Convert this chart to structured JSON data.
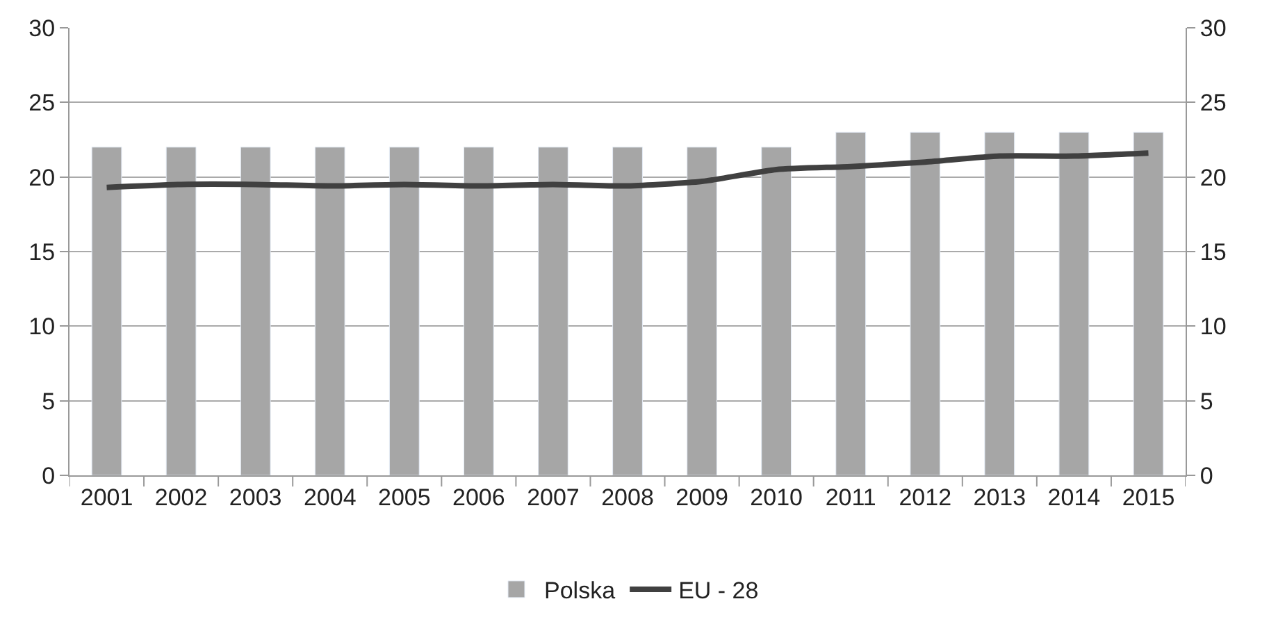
{
  "chart_data": {
    "type": "bar",
    "categories": [
      "2001",
      "2002",
      "2003",
      "2004",
      "2005",
      "2006",
      "2007",
      "2008",
      "2009",
      "2010",
      "2011",
      "2012",
      "2013",
      "2014",
      "2015"
    ],
    "series": [
      {
        "name": "Polska",
        "color": "#a6a6a6",
        "values": [
          22,
          22,
          22,
          22,
          22,
          22,
          22,
          22,
          22,
          22,
          23,
          23,
          23,
          23,
          23
        ]
      },
      {
        "name": "EU - 28",
        "type": "line",
        "axis": "y2",
        "color": "#404040",
        "values": [
          19.3,
          19.5,
          19.5,
          19.4,
          19.5,
          19.4,
          19.5,
          19.4,
          19.7,
          20.5,
          20.7,
          21.0,
          21.4,
          21.4,
          21.6
        ]
      }
    ],
    "ylim": [
      0,
      30
    ],
    "yticks": [
      0,
      5,
      10,
      15,
      20,
      25,
      30
    ],
    "y2lim": [
      0,
      30
    ],
    "y2ticks": [
      0,
      5,
      10,
      15,
      20,
      25,
      30
    ],
    "grid": "y",
    "legend": "bottom",
    "marker": "none",
    "line_style": "solid"
  }
}
